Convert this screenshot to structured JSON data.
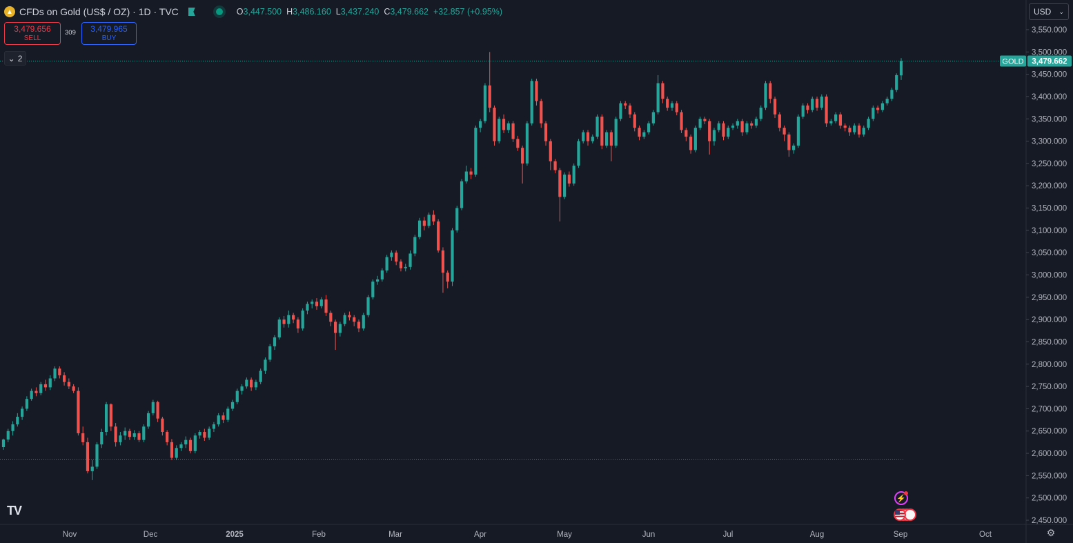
{
  "header": {
    "symbol_title": "CFDs on Gold (US$ / OZ) · 1D · TVC",
    "ohlc": [
      {
        "k": "O",
        "v": "3,447.500"
      },
      {
        "k": "H",
        "v": "3,486.160"
      },
      {
        "k": "L",
        "v": "3,437.240"
      },
      {
        "k": "C",
        "v": "3,479.662"
      },
      {
        "k": "",
        "v": "+32.857 (+0.95%)"
      }
    ]
  },
  "trade": {
    "sell_price": "3,479.656",
    "sell_label": "SELL",
    "spread": "309",
    "buy_price": "3,479.965",
    "buy_label": "BUY"
  },
  "indicators_toggle": {
    "count": "2"
  },
  "currency": {
    "selected": "USD"
  },
  "price_tag": {
    "symbol": "GOLD",
    "price": "3,479.662"
  },
  "colors": {
    "up": "#26a69a",
    "down": "#ef5350",
    "background": "#161a25",
    "grid": "#1f2330"
  },
  "icons": [
    "gold-coin-icon",
    "flag-icon",
    "live-status-icon",
    "chevron-down-icon",
    "lightning-event-icon",
    "us-flag-event-icon",
    "settings-icon",
    "tradingview-logo"
  ],
  "chart_data": {
    "type": "candlestick",
    "title": "CFDs on Gold (US$ / OZ)",
    "y_ticks": [
      3550,
      3500,
      3450,
      3400,
      3350,
      3300,
      3250,
      3200,
      3150,
      3100,
      3050,
      3000,
      2950,
      2900,
      2850,
      2800,
      2750,
      2700,
      2650,
      2600,
      2550,
      2500,
      2450
    ],
    "y_tick_labels": [
      "3,550.000",
      "3,500.000",
      "3,450.000",
      "3,400.000",
      "3,350.000",
      "3,300.000",
      "3,250.000",
      "3,200.000",
      "3,150.000",
      "3,100.000",
      "3,050.000",
      "3,000.000",
      "2,950.000",
      "2,900.000",
      "2,850.000",
      "2,800.000",
      "2,750.000",
      "2,700.000",
      "2,650.000",
      "2,600.000",
      "2,550.000",
      "2,500.000",
      "2,450.000"
    ],
    "x_labels": [
      "Nov",
      "Dec",
      "2025",
      "Feb",
      "Mar",
      "Apr",
      "May",
      "Jun",
      "Jul",
      "Aug",
      "Sep",
      "Oct"
    ],
    "ylim": [
      2432,
      3588
    ],
    "last_price": 3479.662,
    "reference_line": 2587,
    "candles": [
      [
        2614,
        2631,
        2608,
        2633
      ],
      [
        2631,
        2650,
        2625,
        2655
      ],
      [
        2650,
        2665,
        2640,
        2672
      ],
      [
        2665,
        2682,
        2660,
        2690
      ],
      [
        2682,
        2700,
        2675,
        2705
      ],
      [
        2700,
        2722,
        2695,
        2728
      ],
      [
        2722,
        2740,
        2718,
        2745
      ],
      [
        2740,
        2735,
        2728,
        2748
      ],
      [
        2735,
        2755,
        2730,
        2760
      ],
      [
        2755,
        2748,
        2740,
        2765
      ],
      [
        2748,
        2768,
        2742,
        2775
      ],
      [
        2768,
        2790,
        2762,
        2795
      ],
      [
        2790,
        2775,
        2768,
        2795
      ],
      [
        2775,
        2760,
        2752,
        2782
      ],
      [
        2760,
        2750,
        2744,
        2768
      ],
      [
        2750,
        2740,
        2735,
        2755
      ],
      [
        2740,
        2645,
        2640,
        2748
      ],
      [
        2645,
        2625,
        2618,
        2660
      ],
      [
        2625,
        2560,
        2555,
        2635
      ],
      [
        2560,
        2570,
        2540,
        2585
      ],
      [
        2570,
        2620,
        2565,
        2625
      ],
      [
        2620,
        2648,
        2612,
        2655
      ],
      [
        2648,
        2710,
        2640,
        2715
      ],
      [
        2710,
        2660,
        2650,
        2712
      ],
      [
        2660,
        2625,
        2615,
        2668
      ],
      [
        2625,
        2640,
        2618,
        2648
      ],
      [
        2640,
        2650,
        2630,
        2658
      ],
      [
        2650,
        2637,
        2630,
        2655
      ],
      [
        2637,
        2645,
        2630,
        2652
      ],
      [
        2645,
        2630,
        2625,
        2650
      ],
      [
        2630,
        2660,
        2625,
        2665
      ],
      [
        2660,
        2690,
        2655,
        2695
      ],
      [
        2690,
        2715,
        2685,
        2720
      ],
      [
        2715,
        2678,
        2670,
        2718
      ],
      [
        2678,
        2648,
        2640,
        2682
      ],
      [
        2648,
        2625,
        2618,
        2652
      ],
      [
        2625,
        2590,
        2585,
        2632
      ],
      [
        2590,
        2612,
        2585,
        2618
      ],
      [
        2612,
        2620,
        2605,
        2625
      ],
      [
        2620,
        2630,
        2612,
        2638
      ],
      [
        2630,
        2605,
        2600,
        2635
      ],
      [
        2605,
        2640,
        2600,
        2645
      ],
      [
        2640,
        2648,
        2633,
        2652
      ],
      [
        2648,
        2635,
        2628,
        2655
      ],
      [
        2635,
        2655,
        2630,
        2660
      ],
      [
        2655,
        2665,
        2648,
        2670
      ],
      [
        2665,
        2685,
        2660,
        2690
      ],
      [
        2685,
        2675,
        2668,
        2692
      ],
      [
        2675,
        2700,
        2670,
        2705
      ],
      [
        2700,
        2715,
        2695,
        2720
      ],
      [
        2715,
        2740,
        2710,
        2745
      ],
      [
        2740,
        2750,
        2732,
        2755
      ],
      [
        2750,
        2765,
        2745,
        2770
      ],
      [
        2765,
        2748,
        2740,
        2770
      ],
      [
        2748,
        2760,
        2742,
        2765
      ],
      [
        2760,
        2785,
        2755,
        2790
      ],
      [
        2785,
        2810,
        2778,
        2815
      ],
      [
        2810,
        2840,
        2805,
        2845
      ],
      [
        2840,
        2860,
        2832,
        2865
      ],
      [
        2860,
        2900,
        2855,
        2905
      ],
      [
        2900,
        2890,
        2882,
        2908
      ],
      [
        2890,
        2910,
        2882,
        2920
      ],
      [
        2910,
        2900,
        2892,
        2915
      ],
      [
        2900,
        2880,
        2870,
        2905
      ],
      [
        2880,
        2920,
        2875,
        2925
      ],
      [
        2920,
        2935,
        2912,
        2940
      ],
      [
        2935,
        2940,
        2925,
        2945
      ],
      [
        2940,
        2930,
        2922,
        2948
      ],
      [
        2930,
        2945,
        2925,
        2950
      ],
      [
        2945,
        2915,
        2908,
        2955
      ],
      [
        2915,
        2895,
        2885,
        2920
      ],
      [
        2895,
        2870,
        2832,
        2900
      ],
      [
        2870,
        2890,
        2862,
        2895
      ],
      [
        2890,
        2910,
        2885,
        2915
      ],
      [
        2910,
        2905,
        2898,
        2918
      ],
      [
        2905,
        2895,
        2885,
        2910
      ],
      [
        2895,
        2880,
        2872,
        2900
      ],
      [
        2880,
        2910,
        2875,
        2915
      ],
      [
        2910,
        2950,
        2905,
        2955
      ],
      [
        2950,
        2985,
        2945,
        2990
      ],
      [
        2985,
        2990,
        2978,
        2998
      ],
      [
        2990,
        3010,
        2985,
        3015
      ],
      [
        3010,
        3040,
        3005,
        3045
      ],
      [
        3040,
        3050,
        3032,
        3055
      ],
      [
        3050,
        3030,
        3022,
        3055
      ],
      [
        3030,
        3015,
        3008,
        3035
      ],
      [
        3015,
        3018,
        3008,
        3025
      ],
      [
        3018,
        3048,
        3012,
        3055
      ],
      [
        3048,
        3085,
        3042,
        3090
      ],
      [
        3085,
        3122,
        3080,
        3128
      ],
      [
        3122,
        3110,
        3100,
        3130
      ],
      [
        3110,
        3135,
        3105,
        3140
      ],
      [
        3135,
        3120,
        3112,
        3145
      ],
      [
        3120,
        3055,
        3050,
        3125
      ],
      [
        3055,
        3005,
        2960,
        3062
      ],
      [
        3005,
        2985,
        2970,
        3010
      ],
      [
        2985,
        3100,
        2975,
        3105
      ],
      [
        3100,
        3150,
        3095,
        3155
      ],
      [
        3150,
        3210,
        3145,
        3215
      ],
      [
        3210,
        3232,
        3205,
        3245
      ],
      [
        3232,
        3225,
        3215,
        3240
      ],
      [
        3225,
        3330,
        3220,
        3335
      ],
      [
        3330,
        3345,
        3320,
        3350
      ],
      [
        3345,
        3425,
        3340,
        3430
      ],
      [
        3425,
        3375,
        3365,
        3500
      ],
      [
        3375,
        3300,
        3290,
        3380
      ],
      [
        3300,
        3350,
        3295,
        3355
      ],
      [
        3350,
        3325,
        3318,
        3360
      ],
      [
        3325,
        3340,
        3318,
        3345
      ],
      [
        3340,
        3305,
        3298,
        3345
      ],
      [
        3305,
        3285,
        3278,
        3312
      ],
      [
        3285,
        3250,
        3205,
        3290
      ],
      [
        3250,
        3340,
        3245,
        3345
      ],
      [
        3340,
        3435,
        3335,
        3440
      ],
      [
        3435,
        3390,
        3380,
        3440
      ],
      [
        3390,
        3340,
        3330,
        3395
      ],
      [
        3340,
        3300,
        3290,
        3345
      ],
      [
        3300,
        3255,
        3235,
        3305
      ],
      [
        3255,
        3235,
        3228,
        3260
      ],
      [
        3235,
        3175,
        3120,
        3240
      ],
      [
        3175,
        3225,
        3170,
        3230
      ],
      [
        3225,
        3205,
        3198,
        3232
      ],
      [
        3205,
        3245,
        3200,
        3250
      ],
      [
        3245,
        3300,
        3240,
        3305
      ],
      [
        3300,
        3320,
        3295,
        3325
      ],
      [
        3320,
        3300,
        3290,
        3325
      ],
      [
        3300,
        3310,
        3295,
        3315
      ],
      [
        3310,
        3355,
        3305,
        3360
      ],
      [
        3355,
        3290,
        3282,
        3360
      ],
      [
        3290,
        3320,
        3285,
        3325
      ],
      [
        3320,
        3290,
        3255,
        3325
      ],
      [
        3290,
        3350,
        3285,
        3355
      ],
      [
        3350,
        3385,
        3345,
        3390
      ],
      [
        3385,
        3380,
        3372,
        3390
      ],
      [
        3380,
        3360,
        3352,
        3385
      ],
      [
        3360,
        3330,
        3322,
        3365
      ],
      [
        3330,
        3310,
        3302,
        3335
      ],
      [
        3310,
        3320,
        3305,
        3325
      ],
      [
        3320,
        3340,
        3315,
        3345
      ],
      [
        3340,
        3365,
        3335,
        3370
      ],
      [
        3365,
        3430,
        3360,
        3448
      ],
      [
        3430,
        3395,
        3385,
        3435
      ],
      [
        3395,
        3375,
        3368,
        3400
      ],
      [
        3375,
        3385,
        3368,
        3390
      ],
      [
        3385,
        3365,
        3358,
        3390
      ],
      [
        3365,
        3325,
        3318,
        3370
      ],
      [
        3325,
        3310,
        3300,
        3330
      ],
      [
        3310,
        3280,
        3272,
        3315
      ],
      [
        3280,
        3330,
        3275,
        3335
      ],
      [
        3330,
        3350,
        3325,
        3355
      ],
      [
        3350,
        3345,
        3338,
        3355
      ],
      [
        3345,
        3300,
        3270,
        3350
      ],
      [
        3300,
        3325,
        3290,
        3330
      ],
      [
        3325,
        3340,
        3320,
        3345
      ],
      [
        3340,
        3310,
        3302,
        3345
      ],
      [
        3310,
        3330,
        3305,
        3335
      ],
      [
        3330,
        3335,
        3325,
        3340
      ],
      [
        3335,
        3345,
        3328,
        3350
      ],
      [
        3345,
        3320,
        3312,
        3350
      ],
      [
        3320,
        3340,
        3315,
        3345
      ],
      [
        3340,
        3335,
        3328,
        3345
      ],
      [
        3335,
        3350,
        3330,
        3355
      ],
      [
        3350,
        3375,
        3345,
        3380
      ],
      [
        3375,
        3430,
        3370,
        3435
      ],
      [
        3430,
        3395,
        3385,
        3435
      ],
      [
        3395,
        3360,
        3352,
        3400
      ],
      [
        3360,
        3330,
        3322,
        3365
      ],
      [
        3330,
        3315,
        3300,
        3335
      ],
      [
        3315,
        3280,
        3265,
        3320
      ],
      [
        3280,
        3290,
        3272,
        3295
      ],
      [
        3290,
        3355,
        3285,
        3360
      ],
      [
        3355,
        3380,
        3350,
        3385
      ],
      [
        3380,
        3370,
        3362,
        3385
      ],
      [
        3370,
        3395,
        3365,
        3400
      ],
      [
        3395,
        3375,
        3368,
        3400
      ],
      [
        3375,
        3400,
        3370,
        3405
      ],
      [
        3400,
        3340,
        3332,
        3405
      ],
      [
        3340,
        3345,
        3335,
        3350
      ],
      [
        3345,
        3360,
        3340,
        3365
      ],
      [
        3360,
        3335,
        3328,
        3365
      ],
      [
        3335,
        3330,
        3322,
        3340
      ],
      [
        3330,
        3320,
        3312,
        3335
      ],
      [
        3320,
        3335,
        3315,
        3340
      ],
      [
        3335,
        3315,
        3308,
        3340
      ],
      [
        3315,
        3330,
        3310,
        3335
      ],
      [
        3330,
        3350,
        3325,
        3355
      ],
      [
        3350,
        3375,
        3345,
        3380
      ],
      [
        3375,
        3370,
        3362,
        3380
      ],
      [
        3370,
        3385,
        3365,
        3390
      ],
      [
        3385,
        3395,
        3380,
        3400
      ],
      [
        3395,
        3415,
        3390,
        3420
      ],
      [
        3415,
        3448,
        3410,
        3452
      ],
      [
        3447.5,
        3479.662,
        3437.24,
        3486.16
      ]
    ]
  }
}
